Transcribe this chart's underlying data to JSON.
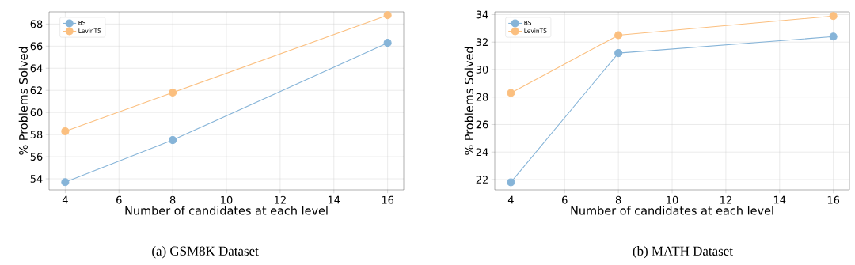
{
  "chart_data": [
    {
      "type": "line",
      "xlabel": "Number of candidates at each level",
      "ylabel": "% Problems Solved",
      "x": [
        4,
        8,
        16
      ],
      "series": [
        {
          "name": "BS",
          "color": "#86b4d8",
          "values": [
            53.7,
            57.5,
            66.3
          ]
        },
        {
          "name": "LevinTS",
          "color": "#fbbf7f",
          "values": [
            58.3,
            61.8,
            68.8
          ]
        }
      ],
      "xlim": [
        3.4,
        16.6
      ],
      "xticks": [
        4,
        6,
        8,
        10,
        12,
        14,
        16
      ],
      "ylim": [
        53.0,
        69.1
      ],
      "yticks": [
        54,
        56,
        58,
        60,
        62,
        64,
        66,
        68
      ],
      "grid": true,
      "legend": "top left",
      "marker": "circle",
      "line_style": "solid",
      "annotations": [
        "(a) GSM8K Dataset"
      ]
    },
    {
      "type": "line",
      "xlabel": "Number of candidates at each level",
      "ylabel": "% Problems Solved",
      "x": [
        4,
        8,
        16
      ],
      "series": [
        {
          "name": "BS",
          "color": "#86b4d8",
          "values": [
            21.8,
            31.2,
            32.4
          ]
        },
        {
          "name": "LevinTS",
          "color": "#fbbf7f",
          "values": [
            28.3,
            32.5,
            33.9
          ]
        }
      ],
      "xlim": [
        3.4,
        16.6
      ],
      "xticks": [
        4,
        6,
        8,
        10,
        12,
        14,
        16
      ],
      "ylim": [
        21.25,
        34.2
      ],
      "yticks": [
        22,
        24,
        26,
        28,
        30,
        32,
        34
      ],
      "grid": true,
      "legend": "top left",
      "marker": "circle",
      "line_style": "solid",
      "annotations": [
        "(b) MATH Dataset"
      ]
    }
  ]
}
